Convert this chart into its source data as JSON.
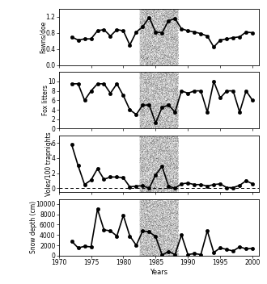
{
  "shade_xmin": 1982.5,
  "shade_xmax": 1988.5,
  "xlim": [
    1970,
    2001
  ],
  "xticks": [
    1970,
    1975,
    1980,
    1985,
    1990,
    1995,
    2000
  ],
  "xlabel": "Years",
  "fawns": {
    "years": [
      1972,
      1973,
      1974,
      1975,
      1976,
      1977,
      1978,
      1979,
      1980,
      1981,
      1982,
      1983,
      1984,
      1985,
      1986,
      1987,
      1988,
      1989,
      1990,
      1991,
      1992,
      1993,
      1994,
      1995,
      1996,
      1997,
      1998,
      1999,
      2000
    ],
    "values": [
      0.7,
      0.62,
      0.65,
      0.65,
      0.85,
      0.88,
      0.72,
      0.88,
      0.85,
      0.5,
      0.82,
      0.95,
      1.18,
      0.82,
      0.8,
      1.1,
      1.15,
      0.9,
      0.85,
      0.82,
      0.78,
      0.72,
      0.45,
      0.62,
      0.65,
      0.68,
      0.7,
      0.82,
      0.8
    ],
    "ylabel": "Fawns/doe",
    "ylim": [
      0,
      1.4
    ],
    "yticks": [
      0,
      0.4,
      0.8,
      1.2
    ]
  },
  "fox": {
    "years": [
      1972,
      1973,
      1974,
      1975,
      1976,
      1977,
      1978,
      1979,
      1980,
      1981,
      1982,
      1983,
      1984,
      1985,
      1986,
      1987,
      1988,
      1989,
      1990,
      1991,
      1992,
      1993,
      1994,
      1995,
      1996,
      1997,
      1998,
      1999,
      2000
    ],
    "values": [
      9.5,
      9.5,
      6.0,
      8.0,
      9.5,
      9.5,
      7.5,
      9.5,
      7.0,
      4.0,
      3.0,
      5.0,
      5.0,
      1.2,
      4.5,
      5.0,
      3.5,
      8.0,
      7.5,
      8.0,
      8.0,
      3.5,
      10.0,
      6.5,
      8.0,
      8.0,
      3.5,
      8.0,
      6.0
    ],
    "ylabel": "Fox litters",
    "ylim": [
      0,
      12
    ],
    "yticks": [
      0,
      2,
      4,
      6,
      8,
      10
    ]
  },
  "voles": {
    "years": [
      1972,
      1973,
      1974,
      1975,
      1976,
      1977,
      1978,
      1979,
      1980,
      1981,
      1982,
      1983,
      1984,
      1985,
      1986,
      1987,
      1988,
      1989,
      1990,
      1991,
      1992,
      1993,
      1994,
      1995,
      1996,
      1997,
      1998,
      1999,
      2000
    ],
    "values": [
      5.8,
      3.0,
      0.5,
      1.1,
      2.6,
      1.2,
      1.5,
      1.5,
      1.4,
      0.2,
      0.3,
      0.35,
      0.0,
      1.8,
      2.9,
      0.3,
      0.0,
      0.6,
      0.7,
      0.5,
      0.5,
      0.3,
      0.5,
      0.6,
      0.1,
      0.1,
      0.4,
      1.0,
      0.6
    ],
    "ylabel": "Voles/100 trapnights",
    "ylim": [
      -0.5,
      7
    ],
    "yticks": [
      0,
      2,
      4,
      6
    ]
  },
  "snow": {
    "years": [
      1972,
      1973,
      1974,
      1975,
      1976,
      1977,
      1978,
      1979,
      1980,
      1981,
      1982,
      1983,
      1984,
      1985,
      1986,
      1987,
      1988,
      1989,
      1990,
      1991,
      1992,
      1993,
      1994,
      1995,
      1996,
      1997,
      1998,
      1999,
      2000
    ],
    "values": [
      2800,
      1500,
      1800,
      1700,
      9000,
      5000,
      4800,
      3800,
      7800,
      3800,
      2000,
      4800,
      4600,
      3700,
      100,
      800,
      200,
      4000,
      200,
      400,
      200,
      4800,
      600,
      1500,
      1200,
      900,
      1700,
      1300,
      1400
    ],
    "ylabel": "Snow depth (cm)",
    "ylim": [
      0,
      11000
    ],
    "yticks": [
      0,
      2000,
      4000,
      6000,
      8000,
      10000
    ]
  },
  "n_noise_pts": 8000,
  "noise_alpha": 0.35,
  "noise_size": 0.08,
  "line_color": "black",
  "line_width": 1.2,
  "marker_size": 3.0
}
